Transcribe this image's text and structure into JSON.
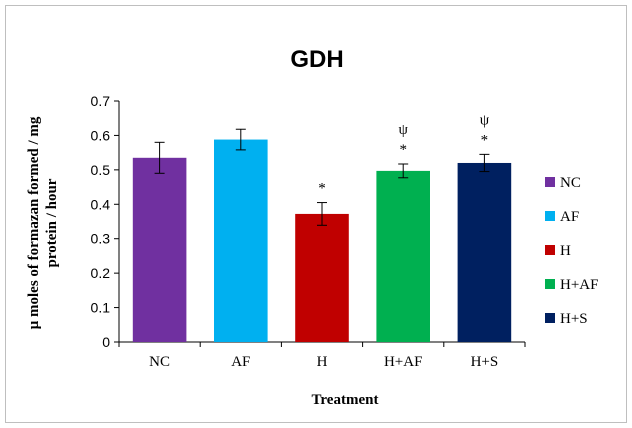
{
  "chart_data": {
    "type": "bar",
    "title": "GDH",
    "xlabel": "Treatment",
    "ylabel_lines": [
      "µ moles of formazan  formed / mg",
      "protein  / hour"
    ],
    "categories": [
      "NC",
      "AF",
      "H",
      "H+AF",
      "H+S"
    ],
    "values": [
      0.535,
      0.588,
      0.372,
      0.497,
      0.52
    ],
    "errors": [
      0.045,
      0.03,
      0.033,
      0.02,
      0.025
    ],
    "colors": [
      "#7030a0",
      "#00b0f0",
      "#c00000",
      "#00b050",
      "#002060"
    ],
    "annotations": [
      [],
      [],
      [
        "*"
      ],
      [
        "ψ",
        "*"
      ],
      [
        "ψ",
        "*"
      ]
    ],
    "ylim": [
      0,
      0.7
    ],
    "yticks": [
      "0",
      "0.1",
      "0.2",
      "0.3",
      "0.4",
      "0.5",
      "0.6",
      "0.7"
    ],
    "grid": false,
    "legend": {
      "position": "right",
      "entries": [
        "NC",
        "AF",
        "H",
        "H+AF",
        "H+S"
      ]
    }
  }
}
